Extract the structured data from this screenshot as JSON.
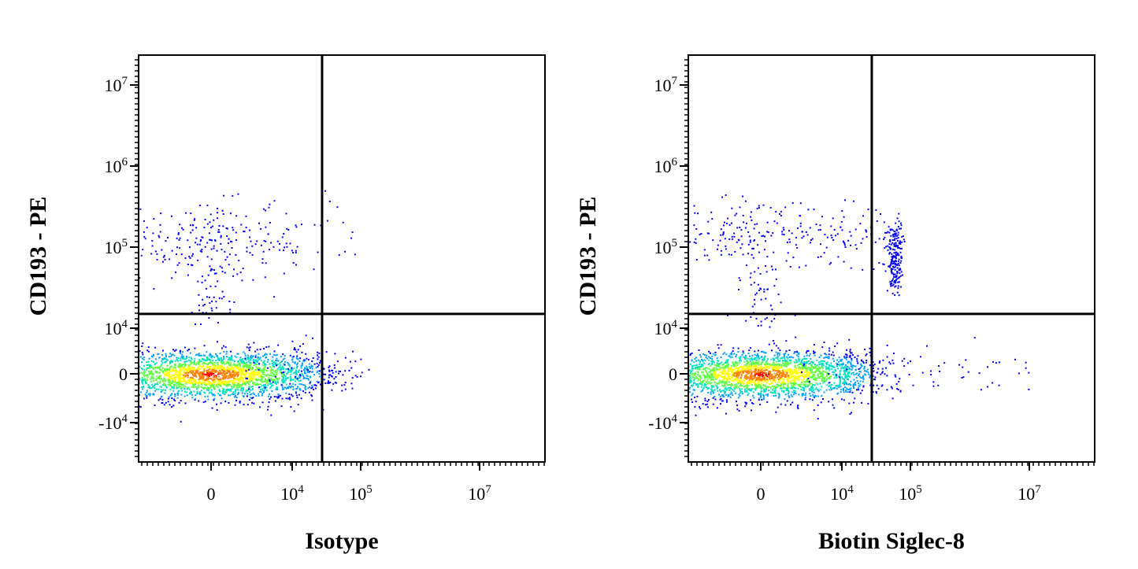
{
  "chart_data": [
    {
      "type": "scatter",
      "subtype": "flow-cytometry-density-dot-plot",
      "title": "",
      "xlabel": "Isotype",
      "ylabel": "CD193 - PE",
      "x_scale": "biexponential",
      "y_scale": "biexponential",
      "x_ticks": [
        {
          "label": "0",
          "base": "0",
          "exp": ""
        },
        {
          "label": "10^4",
          "base": "10",
          "exp": "4"
        },
        {
          "label": "10^5",
          "base": "10",
          "exp": "5"
        },
        {
          "label": "10^7",
          "base": "10",
          "exp": "7"
        }
      ],
      "y_ticks": [
        {
          "label": "10^7",
          "base": "10",
          "exp": "7"
        },
        {
          "label": "10^6",
          "base": "10",
          "exp": "6"
        },
        {
          "label": "10^5",
          "base": "10",
          "exp": "5"
        },
        {
          "label": "10^4",
          "base": "10",
          "exp": "4"
        },
        {
          "label": "0",
          "base": "0",
          "exp": ""
        },
        {
          "label": "-10^4",
          "base": "-10",
          "exp": "4"
        }
      ],
      "quadrant_gate": {
        "x": 6200,
        "y": 15000
      },
      "populations": [
        {
          "description": "main negative population",
          "center": [
            0,
            0
          ],
          "spread": [
            3000,
            2500
          ],
          "density": "high"
        },
        {
          "description": "CD193+ Siglec-8- cluster",
          "center": [
            0,
            120000
          ],
          "spread": [
            3500,
            60000
          ],
          "density": "low"
        }
      ],
      "colormap": [
        "#0000ff",
        "#00a0ff",
        "#00e0c0",
        "#60ff40",
        "#ffff00",
        "#ff8000",
        "#ff0000"
      ]
    },
    {
      "type": "scatter",
      "subtype": "flow-cytometry-density-dot-plot",
      "title": "",
      "xlabel": "Biotin Siglec-8",
      "ylabel": "CD193 - PE",
      "x_scale": "biexponential",
      "y_scale": "biexponential",
      "x_ticks": [
        {
          "label": "0",
          "base": "0",
          "exp": ""
        },
        {
          "label": "10^4",
          "base": "10",
          "exp": "4"
        },
        {
          "label": "10^5",
          "base": "10",
          "exp": "5"
        },
        {
          "label": "10^7",
          "base": "10",
          "exp": "7"
        }
      ],
      "y_ticks": [
        {
          "label": "10^7",
          "base": "10",
          "exp": "7"
        },
        {
          "label": "10^6",
          "base": "10",
          "exp": "6"
        },
        {
          "label": "10^5",
          "base": "10",
          "exp": "5"
        },
        {
          "label": "10^4",
          "base": "10",
          "exp": "4"
        },
        {
          "label": "0",
          "base": "0",
          "exp": ""
        },
        {
          "label": "-10^4",
          "base": "-10",
          "exp": "4"
        }
      ],
      "quadrant_gate": {
        "x": 6200,
        "y": 15000
      },
      "populations": [
        {
          "description": "main negative population",
          "center": [
            0,
            0
          ],
          "spread": [
            3000,
            2500
          ],
          "density": "high"
        },
        {
          "description": "CD193+ Siglec-8- cluster",
          "center": [
            0,
            150000
          ],
          "spread": [
            3500,
            60000
          ],
          "density": "low"
        },
        {
          "description": "CD193+ Siglec-8+ eosinophils",
          "center": [
            55000,
            80000
          ],
          "spread": [
            8000,
            40000
          ],
          "density": "low"
        }
      ],
      "colormap": [
        "#0000ff",
        "#00a0ff",
        "#00e0c0",
        "#60ff40",
        "#ffff00",
        "#ff8000",
        "#ff0000"
      ]
    }
  ]
}
